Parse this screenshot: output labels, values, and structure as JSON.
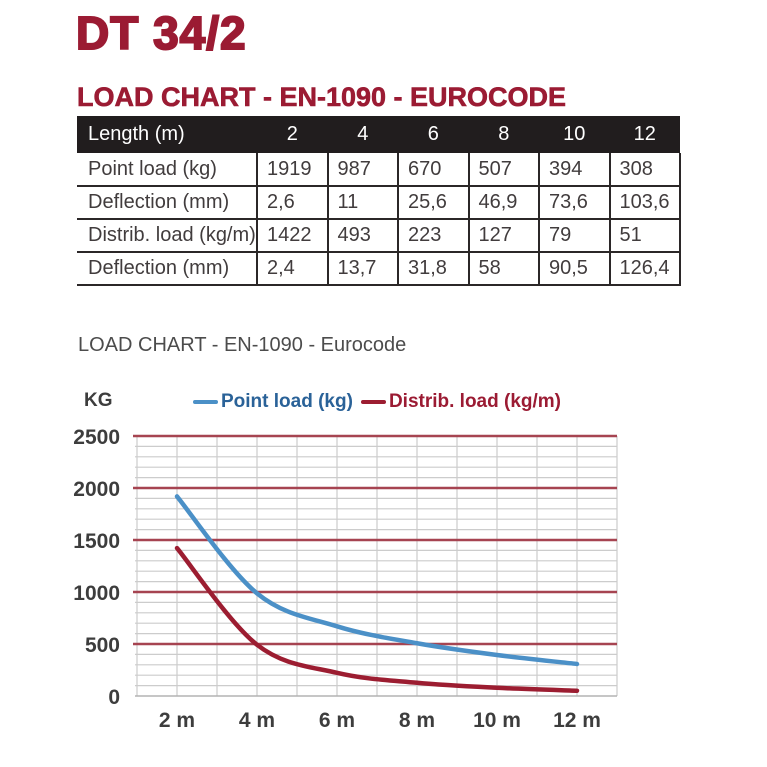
{
  "page": {
    "title": "DT 34/2",
    "heading": "LOAD CHART - EN-1090 - EUROCODE",
    "subheading": "LOAD CHART - EN-1090 - Eurocode"
  },
  "colors": {
    "brand_red": "#9b1b33",
    "table_header_bg": "#211d1e",
    "table_border": "#2b2728",
    "table_text": "#413c3d",
    "subtitle_gray": "#4c4c4c",
    "line_blue": "#4b90c7",
    "legend_blue_text": "#2a6298",
    "line_red": "#9c1d31",
    "grid_major_red": "#a64451",
    "grid_minor_gray": "#cccccc",
    "axis_zero_gray": "#b3b3b3",
    "axis_label_gray": "#3d3d3d"
  },
  "table": {
    "header": [
      "Length (m)",
      "2",
      "4",
      "6",
      "8",
      "10",
      "12"
    ],
    "rows": [
      {
        "label": "Point load (kg)",
        "values": [
          "1919",
          "987",
          "670",
          "507",
          "394",
          "308"
        ]
      },
      {
        "label": "Deflection (mm)",
        "values": [
          "2,6",
          "11",
          "25,6",
          "46,9",
          "73,6",
          "103,6"
        ]
      },
      {
        "label": "Distrib. load (kg/m)",
        "values": [
          "1422",
          "493",
          "223",
          "127",
          "79",
          "51"
        ]
      },
      {
        "label": "Deflection (mm)",
        "values": [
          "2,4",
          "13,7",
          "31,8",
          "58",
          "90,5",
          "126,4"
        ]
      }
    ]
  },
  "chart": {
    "y_axis_label": "KG",
    "legend": [
      {
        "label": "Point load (kg)"
      },
      {
        "label": "Distrib. load (kg/m)"
      }
    ]
  },
  "chart_data": {
    "type": "line",
    "title": "LOAD CHART - EN-1090 - Eurocode",
    "xlabel": "",
    "ylabel": "KG",
    "x": [
      2,
      4,
      6,
      8,
      10,
      12
    ],
    "series": [
      {
        "name": "Point load (kg)",
        "color": "#4b90c7",
        "values": [
          1919,
          987,
          670,
          507,
          394,
          308
        ]
      },
      {
        "name": "Distrib. load (kg/m)",
        "color": "#9c1d31",
        "values": [
          1422,
          493,
          223,
          127,
          79,
          51
        ]
      }
    ],
    "xlim": [
      1,
      13
    ],
    "ylim": [
      0,
      2500
    ],
    "y_ticks": [
      0,
      500,
      1000,
      1500,
      2000,
      2500
    ],
    "y_major_step": 500,
    "y_minor_step": 100,
    "x_grid_step": 1,
    "x_tick_labels": [
      "2 m",
      "4 m",
      "6 m",
      "8 m",
      "10 m",
      "12 m"
    ],
    "grid": true,
    "legend_position": "top"
  }
}
